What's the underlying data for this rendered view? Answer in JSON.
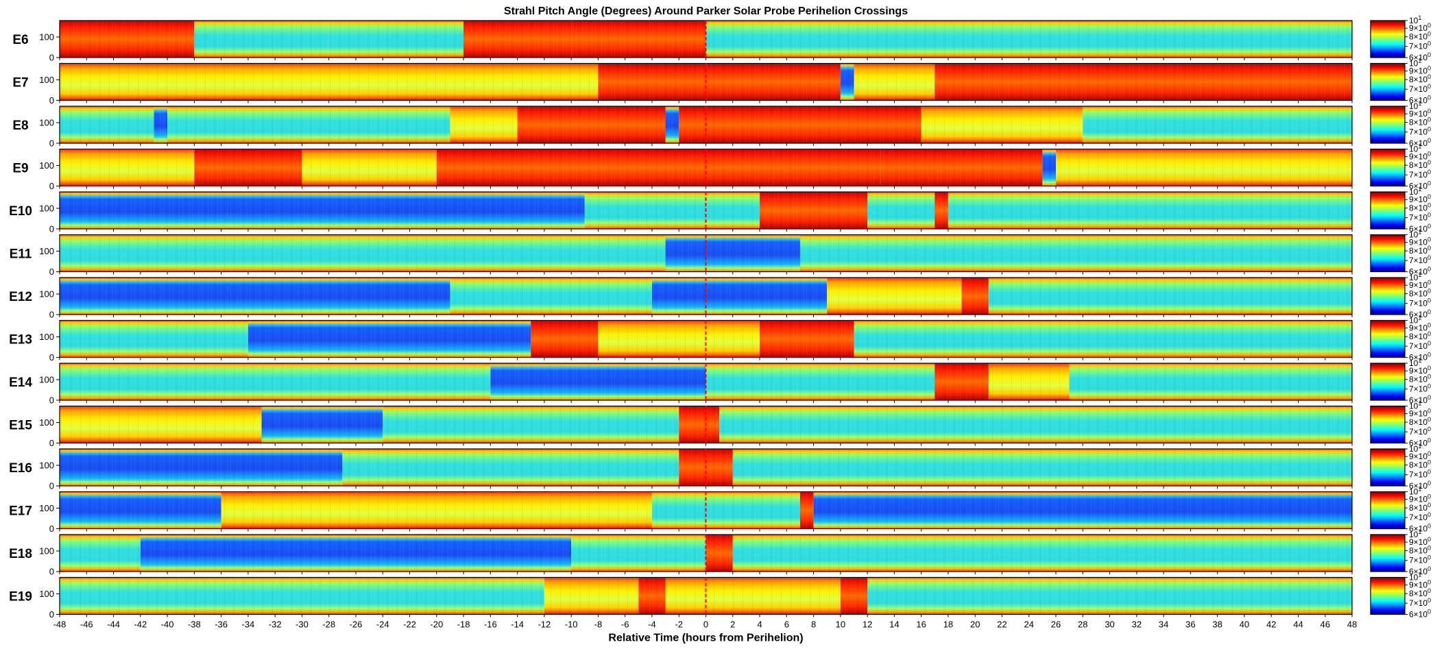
{
  "chart_data": {
    "type": "heatmap",
    "title": "Strahl Pitch Angle (Degrees) Around Parker Solar Probe Perihelion Crossings",
    "xlabel": "Relative Time (hours from Perihelion)",
    "xlim": [
      -48,
      48
    ],
    "x_ticks": [
      -48,
      -46,
      -44,
      -42,
      -40,
      -38,
      -36,
      -34,
      -32,
      -30,
      -28,
      -26,
      -24,
      -22,
      -20,
      -18,
      -16,
      -14,
      -12,
      -10,
      -8,
      -6,
      -4,
      -2,
      0,
      2,
      4,
      6,
      8,
      10,
      12,
      14,
      16,
      18,
      20,
      22,
      24,
      26,
      28,
      30,
      32,
      34,
      36,
      38,
      40,
      42,
      44,
      46,
      48
    ],
    "ylim": [
      0,
      180
    ],
    "y_ticks": [
      0,
      100
    ],
    "perihelion_marker": {
      "x": 0,
      "color": "#ff0000",
      "style": "dashed"
    },
    "colorbar": {
      "colormap": "jet",
      "scale": "log",
      "range": [
        6,
        10
      ],
      "ticks": [
        {
          "base": "6×10",
          "exp": "0",
          "value": 6
        },
        {
          "base": "7×10",
          "exp": "0",
          "value": 7
        },
        {
          "base": "8×10",
          "exp": "0",
          "value": 8
        },
        {
          "base": "9×10",
          "exp": "0",
          "value": 9
        },
        {
          "base": "10",
          "exp": "1",
          "value": 10
        }
      ]
    },
    "panels": [
      {
        "encounter": "E6",
        "bands": [
          [
            -48,
            -38,
            "high"
          ],
          [
            -38,
            -28,
            "mid"
          ],
          [
            -28,
            -18,
            "mid"
          ],
          [
            -18,
            -10,
            "high"
          ],
          [
            -10,
            0,
            "high"
          ],
          [
            0,
            48,
            "mid"
          ]
        ]
      },
      {
        "encounter": "E7",
        "bands": [
          [
            -48,
            -20,
            "midhigh"
          ],
          [
            -20,
            -8,
            "midhigh"
          ],
          [
            -8,
            10,
            "high"
          ],
          [
            10,
            11,
            "low"
          ],
          [
            11,
            17,
            "midhigh"
          ],
          [
            17,
            44,
            "high"
          ],
          [
            44,
            48,
            "high"
          ]
        ]
      },
      {
        "encounter": "E8",
        "bands": [
          [
            -48,
            -41,
            "mid"
          ],
          [
            -41,
            -40,
            "low"
          ],
          [
            -40,
            -19,
            "mid"
          ],
          [
            -19,
            -14,
            "midhigh"
          ],
          [
            -14,
            -3,
            "high"
          ],
          [
            -3,
            -2,
            "low"
          ],
          [
            -2,
            16,
            "high"
          ],
          [
            16,
            28,
            "midhigh"
          ],
          [
            28,
            48,
            "mid"
          ]
        ]
      },
      {
        "encounter": "E9",
        "bands": [
          [
            -48,
            -38,
            "midhigh"
          ],
          [
            -38,
            -30,
            "high"
          ],
          [
            -30,
            -20,
            "midhigh"
          ],
          [
            -20,
            5,
            "high"
          ],
          [
            5,
            13,
            "high"
          ],
          [
            13,
            25,
            "high"
          ],
          [
            25,
            26,
            "low"
          ],
          [
            26,
            48,
            "midhigh"
          ]
        ]
      },
      {
        "encounter": "E10",
        "bands": [
          [
            -48,
            -9,
            "low"
          ],
          [
            -9,
            4,
            "mid"
          ],
          [
            4,
            12,
            "high"
          ],
          [
            12,
            17,
            "mid"
          ],
          [
            17,
            18,
            "high"
          ],
          [
            18,
            48,
            "mid"
          ]
        ]
      },
      {
        "encounter": "E11",
        "bands": [
          [
            -48,
            -3,
            "mid"
          ],
          [
            -3,
            7,
            "low"
          ],
          [
            7,
            48,
            "mid"
          ]
        ]
      },
      {
        "encounter": "E12",
        "bands": [
          [
            -48,
            -19,
            "low"
          ],
          [
            -19,
            -4,
            "mid"
          ],
          [
            -4,
            9,
            "low"
          ],
          [
            9,
            19,
            "midhigh"
          ],
          [
            19,
            21,
            "high"
          ],
          [
            21,
            48,
            "mid"
          ]
        ]
      },
      {
        "encounter": "E13",
        "bands": [
          [
            -48,
            -34,
            "mid"
          ],
          [
            -34,
            -13,
            "low"
          ],
          [
            -13,
            -8,
            "high"
          ],
          [
            -8,
            4,
            "midhigh"
          ],
          [
            4,
            11,
            "high"
          ],
          [
            11,
            48,
            "mid"
          ]
        ]
      },
      {
        "encounter": "E14",
        "bands": [
          [
            -48,
            -16,
            "mid"
          ],
          [
            -16,
            0,
            "low"
          ],
          [
            0,
            17,
            "mid"
          ],
          [
            17,
            21,
            "high"
          ],
          [
            21,
            27,
            "midhigh"
          ],
          [
            27,
            48,
            "mid"
          ]
        ]
      },
      {
        "encounter": "E15",
        "bands": [
          [
            -48,
            -33,
            "midhigh"
          ],
          [
            -33,
            -24,
            "low"
          ],
          [
            -24,
            -2,
            "mid"
          ],
          [
            -2,
            1,
            "high"
          ],
          [
            1,
            48,
            "mid"
          ]
        ]
      },
      {
        "encounter": "E16",
        "bands": [
          [
            -48,
            -27,
            "low"
          ],
          [
            -27,
            -2,
            "mid"
          ],
          [
            -2,
            2,
            "high"
          ],
          [
            2,
            48,
            "mid"
          ]
        ]
      },
      {
        "encounter": "E17",
        "bands": [
          [
            -48,
            -36,
            "low"
          ],
          [
            -36,
            -4,
            "midhigh"
          ],
          [
            -4,
            7,
            "mid"
          ],
          [
            7,
            8,
            "high"
          ],
          [
            8,
            48,
            "low"
          ]
        ]
      },
      {
        "encounter": "E18",
        "bands": [
          [
            -48,
            -42,
            "mid"
          ],
          [
            -42,
            -10,
            "low"
          ],
          [
            -10,
            0,
            "mid"
          ],
          [
            0,
            2,
            "high"
          ],
          [
            2,
            48,
            "mid"
          ]
        ]
      },
      {
        "encounter": "E19",
        "bands": [
          [
            -48,
            -12,
            "mid"
          ],
          [
            -12,
            -5,
            "midhigh"
          ],
          [
            -5,
            -3,
            "high"
          ],
          [
            -3,
            10,
            "midhigh"
          ],
          [
            10,
            12,
            "high"
          ],
          [
            12,
            48,
            "mid"
          ]
        ]
      }
    ]
  }
}
